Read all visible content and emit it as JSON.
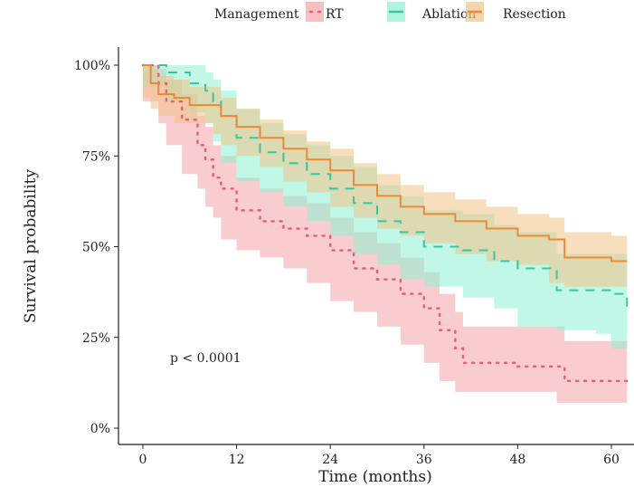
{
  "chart_data": {
    "type": "line",
    "subtype": "kaplan-meier step curves with confidence bands",
    "xlabel": "Time (months)",
    "ylabel": "Survival probability",
    "xlim": [
      0,
      62
    ],
    "ylim": [
      0,
      100
    ],
    "x_ticks": [
      0,
      12,
      24,
      36,
      48,
      60
    ],
    "x_tick_labels": [
      "0",
      "12",
      "24",
      "36",
      "48",
      "60"
    ],
    "y_ticks": [
      0,
      25,
      50,
      75,
      100
    ],
    "y_tick_labels": [
      "0%",
      "25%",
      "50%",
      "75%",
      "100%"
    ],
    "grid": false,
    "legend": {
      "title": "Management",
      "placement": "top"
    },
    "annotation": "p < 0.0001",
    "series": [
      {
        "name": "RT",
        "color": "#e8606e",
        "band_color": "#f4a3aa",
        "dash": "dotted",
        "x": [
          0,
          2,
          3,
          5,
          7,
          8,
          9,
          10,
          12,
          15,
          18,
          21,
          24,
          27,
          30,
          33,
          36,
          38,
          40,
          41,
          48,
          53,
          54,
          62
        ],
        "y": [
          100,
          95,
          90,
          85,
          78,
          74,
          69,
          66,
          60,
          57,
          55,
          53,
          49,
          44,
          41,
          37,
          33,
          27,
          22,
          18,
          17,
          17,
          13,
          13
        ],
        "lower": [
          100,
          90,
          84,
          78,
          70,
          66,
          61,
          58,
          52,
          49,
          47,
          44,
          40,
          35,
          32,
          28,
          23,
          18,
          13,
          10,
          10,
          10,
          7,
          7
        ],
        "upper": [
          100,
          99,
          96,
          92,
          86,
          83,
          78,
          75,
          69,
          66,
          64,
          62,
          58,
          54,
          51,
          47,
          43,
          37,
          32,
          28,
          28,
          28,
          24,
          24
        ]
      },
      {
        "name": "Ablation",
        "color": "#3cc49a",
        "band_color": "#8ef0d2",
        "dash": "dashed",
        "x": [
          0,
          3,
          6,
          8,
          9,
          10,
          12,
          15,
          18,
          21,
          24,
          27,
          30,
          33,
          36,
          41,
          45,
          48,
          53,
          58,
          60,
          62
        ],
        "y": [
          100,
          98,
          95,
          93,
          90,
          86,
          80,
          76,
          73,
          70,
          66,
          62,
          57,
          54,
          50,
          49,
          46,
          44,
          38,
          38,
          37,
          33
        ],
        "lower": [
          100,
          94,
          90,
          87,
          84,
          79,
          73,
          68,
          65,
          61,
          57,
          53,
          48,
          45,
          41,
          39,
          36,
          33,
          28,
          27,
          26,
          22
        ],
        "upper": [
          100,
          100,
          100,
          98,
          96,
          93,
          88,
          84,
          81,
          78,
          75,
          72,
          67,
          64,
          60,
          59,
          56,
          54,
          48,
          48,
          48,
          44
        ]
      },
      {
        "name": "Resection",
        "color": "#e88a3a",
        "band_color": "#f0c286",
        "dash": "solid",
        "x": [
          0,
          1,
          2,
          4,
          6,
          9,
          10,
          12,
          15,
          18,
          21,
          24,
          27,
          30,
          33,
          36,
          40,
          44,
          48,
          52,
          54,
          60,
          62
        ],
        "y": [
          100,
          95,
          92,
          91,
          89,
          89,
          86,
          83,
          80,
          77,
          74,
          71,
          67,
          64,
          61,
          59,
          57,
          55,
          53,
          52,
          47,
          46,
          46
        ],
        "lower": [
          100,
          91,
          88,
          86,
          84,
          84,
          81,
          78,
          75,
          72,
          68,
          65,
          61,
          58,
          55,
          53,
          51,
          48,
          46,
          45,
          40,
          39,
          39
        ],
        "upper": [
          100,
          99,
          97,
          96,
          94,
          94,
          91,
          88,
          85,
          82,
          79,
          77,
          73,
          70,
          67,
          65,
          63,
          61,
          59,
          58,
          54,
          53,
          53
        ]
      }
    ]
  }
}
